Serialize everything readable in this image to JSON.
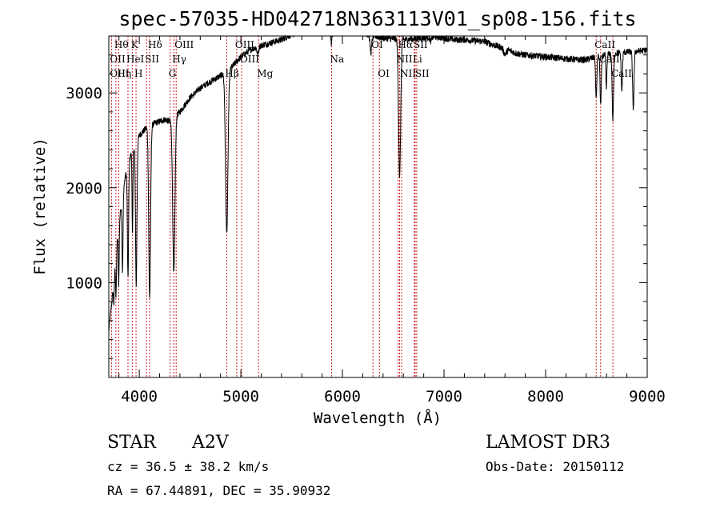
{
  "chart_data": {
    "type": "line",
    "title": "spec-57035-HD042718N363113V01_sp08-156.fits",
    "xlabel": "Wavelength (Å)",
    "ylabel": "Flux (relative)",
    "xlim": [
      3700,
      9000
    ],
    "ylim": [
      0,
      3600
    ],
    "xticks": [
      4000,
      5000,
      6000,
      7000,
      8000,
      9000
    ],
    "yticks": [
      1000,
      2000,
      3000
    ],
    "continuum": [
      [
        3700,
        500
      ],
      [
        3740,
        900
      ],
      [
        3780,
        1400
      ],
      [
        3820,
        1800
      ],
      [
        3860,
        2100
      ],
      [
        3900,
        2300
      ],
      [
        3960,
        2450
      ],
      [
        4000,
        2550
      ],
      [
        4060,
        2620
      ],
      [
        4150,
        2680
      ],
      [
        4250,
        2720
      ],
      [
        4300,
        2700
      ],
      [
        4400,
        2800
      ],
      [
        4500,
        2950
      ],
      [
        4600,
        3050
      ],
      [
        4700,
        3120
      ],
      [
        4800,
        3180
      ],
      [
        4900,
        3260
      ],
      [
        5000,
        3380
      ],
      [
        5100,
        3460
      ],
      [
        5200,
        3500
      ],
      [
        5300,
        3530
      ],
      [
        5400,
        3560
      ],
      [
        5500,
        3620
      ],
      [
        5600,
        3660
      ],
      [
        5700,
        3690
      ],
      [
        5800,
        3700
      ],
      [
        5900,
        3640
      ],
      [
        6000,
        3650
      ],
      [
        6100,
        3660
      ],
      [
        6200,
        3640
      ],
      [
        6300,
        3600
      ],
      [
        6400,
        3580
      ],
      [
        6500,
        3570
      ],
      [
        6600,
        3560
      ],
      [
        6700,
        3570
      ],
      [
        6800,
        3580
      ],
      [
        6900,
        3590
      ],
      [
        7000,
        3580
      ],
      [
        7100,
        3560
      ],
      [
        7200,
        3560
      ],
      [
        7300,
        3550
      ],
      [
        7400,
        3540
      ],
      [
        7500,
        3500
      ],
      [
        7600,
        3470
      ],
      [
        7700,
        3420
      ],
      [
        7800,
        3400
      ],
      [
        7900,
        3390
      ],
      [
        8000,
        3380
      ],
      [
        8100,
        3370
      ],
      [
        8200,
        3360
      ],
      [
        8300,
        3350
      ],
      [
        8400,
        3350
      ],
      [
        8500,
        3380
      ],
      [
        8600,
        3400
      ],
      [
        8700,
        3420
      ],
      [
        8800,
        3430
      ],
      [
        8900,
        3440
      ],
      [
        9000,
        3450
      ]
    ],
    "absorption": [
      {
        "center": 3750,
        "depth": 250,
        "width": 4
      },
      {
        "center": 3771,
        "depth": 450,
        "width": 4
      },
      {
        "center": 3798,
        "depth": 600,
        "width": 4
      },
      {
        "center": 3835,
        "depth": 800,
        "width": 5
      },
      {
        "center": 3889,
        "depth": 1200,
        "width": 6
      },
      {
        "center": 3933,
        "depth": 900,
        "width": 4
      },
      {
        "center": 3970,
        "depth": 1500,
        "width": 7
      },
      {
        "center": 4102,
        "depth": 1800,
        "width": 9
      },
      {
        "center": 4340,
        "depth": 1650,
        "width": 11
      },
      {
        "center": 4861,
        "depth": 1700,
        "width": 12
      },
      {
        "center": 5167,
        "depth": 80,
        "width": 8
      },
      {
        "center": 5890,
        "depth": 120,
        "width": 6
      },
      {
        "center": 6280,
        "depth": 180,
        "width": 8
      },
      {
        "center": 6563,
        "depth": 1450,
        "width": 10
      },
      {
        "center": 6870,
        "depth": 40,
        "width": 8
      },
      {
        "center": 7600,
        "depth": 60,
        "width": 15
      },
      {
        "center": 8498,
        "depth": 450,
        "width": 6
      },
      {
        "center": 8542,
        "depth": 520,
        "width": 6
      },
      {
        "center": 8598,
        "depth": 350,
        "width": 5
      },
      {
        "center": 8662,
        "depth": 700,
        "width": 7
      },
      {
        "center": 8750,
        "depth": 400,
        "width": 6
      },
      {
        "center": 8863,
        "depth": 600,
        "width": 7
      }
    ],
    "line_markers": [
      {
        "wl": 3727,
        "labels": [
          "",
          "OII",
          "OIII"
        ]
      },
      {
        "wl": 3770,
        "labels": [
          "Hθ",
          "",
          ""
        ]
      },
      {
        "wl": 3798,
        "labels": [
          "",
          "",
          "Hη"
        ]
      },
      {
        "wl": 3889,
        "labels": [
          "",
          "HeI",
          ""
        ]
      },
      {
        "wl": 3934,
        "labels": [
          "K",
          "",
          ""
        ]
      },
      {
        "wl": 3968,
        "labels": [
          "",
          "",
          "H"
        ]
      },
      {
        "wl": 4072,
        "labels": [
          "",
          "SII",
          ""
        ]
      },
      {
        "wl": 4102,
        "labels": [
          "Hδ",
          "",
          ""
        ]
      },
      {
        "wl": 4304,
        "labels": [
          "",
          "",
          "G"
        ]
      },
      {
        "wl": 4340,
        "labels": [
          "",
          "Hγ",
          ""
        ]
      },
      {
        "wl": 4363,
        "labels": [
          "OIII",
          "",
          ""
        ]
      },
      {
        "wl": 4861,
        "labels": [
          "",
          "",
          "Hβ"
        ]
      },
      {
        "wl": 4959,
        "labels": [
          "OIII",
          "",
          ""
        ]
      },
      {
        "wl": 5007,
        "labels": [
          "",
          "OIII",
          ""
        ]
      },
      {
        "wl": 5175,
        "labels": [
          "",
          "",
          "Mg"
        ]
      },
      {
        "wl": 5893,
        "labels": [
          "",
          "Na",
          ""
        ]
      },
      {
        "wl": 6300,
        "labels": [
          "OI",
          "",
          ""
        ]
      },
      {
        "wl": 6364,
        "labels": [
          "",
          "",
          "OI"
        ]
      },
      {
        "wl": 6548,
        "labels": [
          "",
          "NII",
          ""
        ]
      },
      {
        "wl": 6563,
        "labels": [
          "Hα",
          "",
          ""
        ]
      },
      {
        "wl": 6583,
        "labels": [
          "",
          "",
          "NII"
        ]
      },
      {
        "wl": 6708,
        "labels": [
          "",
          "Li",
          ""
        ]
      },
      {
        "wl": 6716,
        "labels": [
          "SII",
          "",
          ""
        ]
      },
      {
        "wl": 6731,
        "labels": [
          "",
          "",
          "SII"
        ]
      },
      {
        "wl": 8498,
        "labels": [
          "CaII",
          "",
          ""
        ]
      },
      {
        "wl": 8542,
        "labels": [
          "",
          "CaII",
          ""
        ]
      },
      {
        "wl": 8662,
        "labels": [
          "",
          "",
          "CaII"
        ]
      }
    ],
    "info": {
      "class": "STAR",
      "subclass": "A2V",
      "survey": "LAMOST DR3",
      "cz": "cz = 36.5 ± 38.2 km/s",
      "obs_date": "Obs-Date: 20150112",
      "coords": "RA =  67.44891, DEC =  35.90932"
    }
  }
}
